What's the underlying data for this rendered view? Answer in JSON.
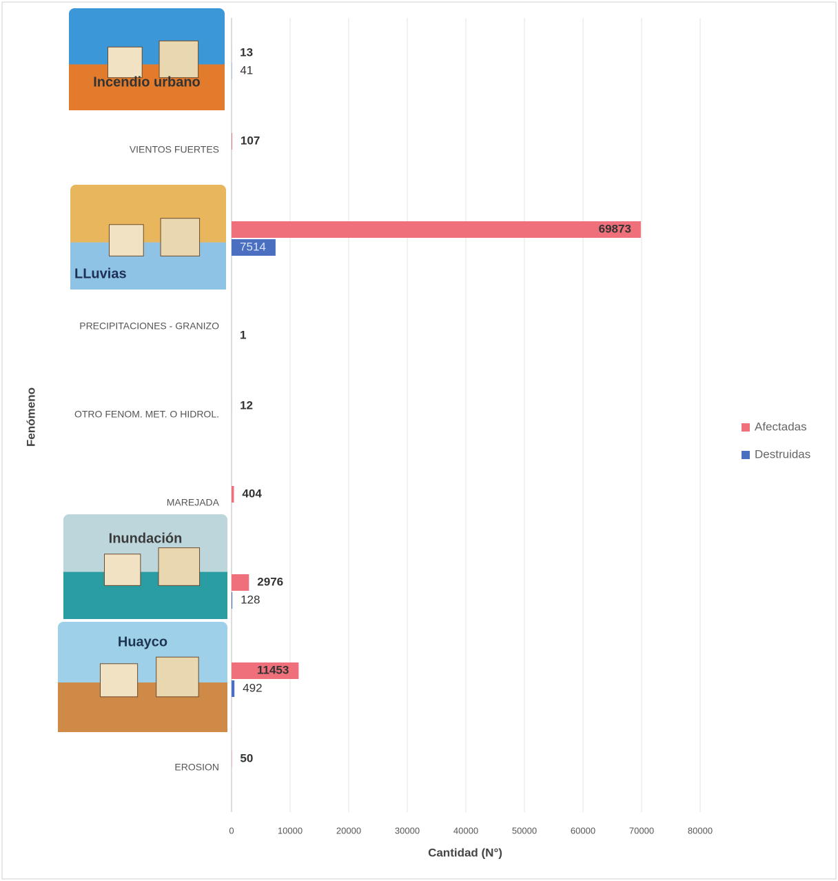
{
  "chart_data": {
    "type": "bar",
    "orientation": "horizontal",
    "x_label": "Cantidad (N°)",
    "y_label": "Fenómeno",
    "categories": [
      "Incendio urbano",
      "VIENTOS FUERTES",
      "LLuvias",
      "PRECIPITACIONES - GRANIZO",
      "OTRO FENOM. MET. O HIDROL.",
      "MAREJADA",
      "Inundación",
      "Huayco",
      "EROSION"
    ],
    "series": [
      {
        "name": "Afectadas",
        "color": "#ef6f7b",
        "values": [
          13,
          107,
          69873,
          null,
          12,
          404,
          2976,
          11453,
          50
        ]
      },
      {
        "name": "Destruidas",
        "color": "#4a6fc1",
        "values": [
          41,
          null,
          7514,
          1,
          null,
          null,
          128,
          492,
          null
        ]
      }
    ],
    "xlim": [
      0,
      80000
    ],
    "xticks": [
      0,
      10000,
      20000,
      30000,
      40000,
      50000,
      60000,
      70000,
      80000
    ],
    "grid": true,
    "legend": "right"
  }
}
